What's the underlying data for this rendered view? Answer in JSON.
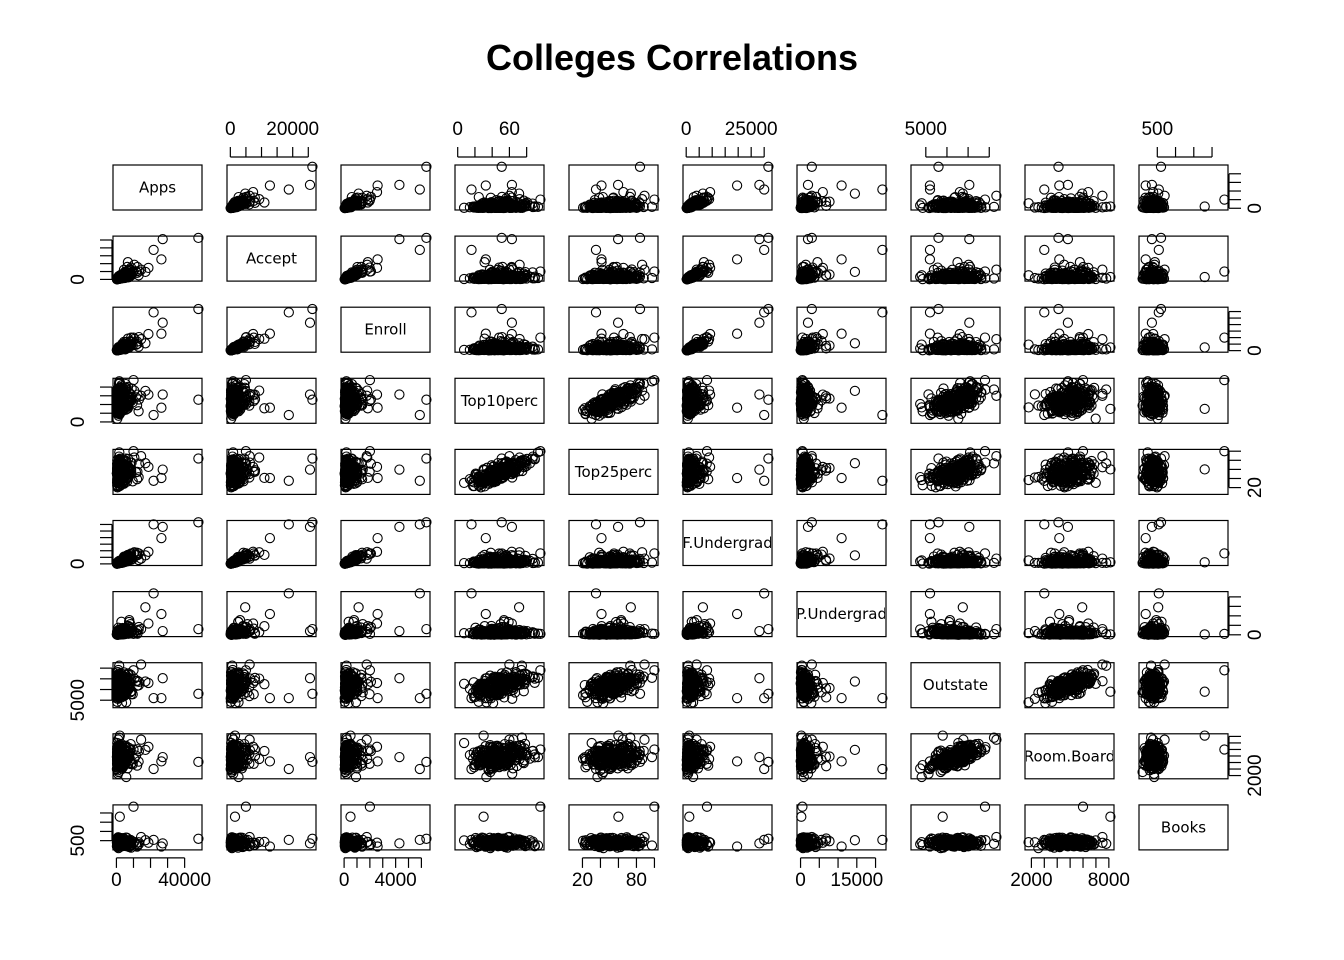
{
  "chart_data": {
    "type": "scatter-matrix",
    "title": "Colleges Correlations",
    "variables": [
      {
        "name": "Apps",
        "min": 81,
        "max": 48094,
        "ticks": [
          "0",
          "40000"
        ],
        "tick_values": [
          0,
          10000,
          20000,
          30000,
          40000
        ],
        "label_values": [
          0,
          40000
        ],
        "dist": "skew"
      },
      {
        "name": "Accept",
        "min": 72,
        "max": 26330,
        "ticks": [
          "0",
          "20000"
        ],
        "tick_values": [
          0,
          5000,
          10000,
          15000,
          20000,
          25000
        ],
        "label_values": [
          0,
          20000
        ],
        "dist": "skew"
      },
      {
        "name": "Enroll",
        "min": 35,
        "max": 6392,
        "ticks": [
          "0",
          "4000"
        ],
        "tick_values": [
          0,
          1000,
          2000,
          3000,
          4000,
          5000,
          6000
        ],
        "label_values": [
          0,
          4000
        ],
        "dist": "skew"
      },
      {
        "name": "Top10perc",
        "min": 1,
        "max": 96,
        "ticks": [
          "0",
          "60"
        ],
        "tick_values": [
          0,
          20,
          40,
          60,
          80
        ],
        "label_values": [
          0,
          60
        ],
        "dist": "normal"
      },
      {
        "name": "Top25perc",
        "min": 9,
        "max": 100,
        "ticks": [
          "20",
          "80"
        ],
        "tick_values": [
          20,
          40,
          60,
          80,
          100
        ],
        "label_values": [
          20,
          80
        ],
        "dist": "normal"
      },
      {
        "name": "F.Undergrad",
        "min": 139,
        "max": 31643,
        "ticks": [
          "0",
          "25000"
        ],
        "tick_values": [
          0,
          5000,
          10000,
          15000,
          20000,
          25000,
          30000
        ],
        "label_values": [
          0,
          25000
        ],
        "dist": "skew"
      },
      {
        "name": "P.Undergrad",
        "min": 1,
        "max": 21836,
        "ticks": [
          "0",
          "15000"
        ],
        "tick_values": [
          0,
          5000,
          10000,
          15000,
          20000
        ],
        "label_values": [
          0,
          15000
        ],
        "dist": "skew"
      },
      {
        "name": "Outstate",
        "min": 2340,
        "max": 21700,
        "ticks": [
          "5000"
        ],
        "tick_values": [
          5000,
          10000,
          15000,
          20000
        ],
        "label_values": [
          5000
        ],
        "dist": "normal"
      },
      {
        "name": "Room.Board",
        "min": 1780,
        "max": 8124,
        "ticks": [
          "2000",
          "8000"
        ],
        "tick_values": [
          2000,
          3000,
          4000,
          5000,
          6000,
          7000,
          8000
        ],
        "label_values": [
          2000,
          8000
        ],
        "dist": "normal"
      },
      {
        "name": "Books",
        "min": 96,
        "max": 2340,
        "ticks": [
          "500"
        ],
        "tick_values": [
          500,
          1000,
          1500,
          2000
        ],
        "label_values": [
          500
        ],
        "dist": "books"
      }
    ],
    "n_observations": 777,
    "grid": false,
    "legend": "none"
  }
}
